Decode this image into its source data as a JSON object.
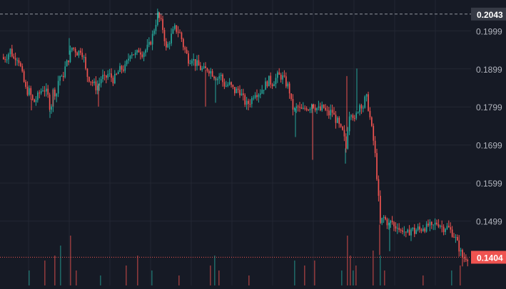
{
  "colors": {
    "background": "#161a25",
    "grid": "#232733",
    "up": "#26a69a",
    "down": "#ef5350",
    "axis_text": "#b2b5be",
    "high_line": "#b2b5be",
    "last_price_line": "#ef5350",
    "high_label_bg": "#363a45",
    "last_label_bg": "#ef5350"
  },
  "price_axis": {
    "tick_labels": [
      "0.1999",
      "0.1899",
      "0.1799",
      "0.1699",
      "0.1599",
      "0.1499"
    ]
  },
  "high_marker": {
    "label": "0.2043"
  },
  "last_price_marker": {
    "label": "0.1404"
  },
  "chart_data": {
    "type": "candlestick",
    "ylim": [
      0.133,
      0.208
    ],
    "y_ticks": [
      0.1999,
      0.1899,
      0.1799,
      0.1699,
      0.1599,
      0.1499
    ],
    "high": 0.2043,
    "last": 0.1404,
    "grid": true,
    "path": [
      [
        0,
        0.193
      ],
      [
        4,
        0.1925
      ],
      [
        10,
        0.1935
      ],
      [
        14,
        0.195
      ],
      [
        18,
        0.1925
      ],
      [
        22,
        0.1935
      ],
      [
        26,
        0.192
      ],
      [
        30,
        0.1885
      ],
      [
        36,
        0.184
      ],
      [
        40,
        0.184
      ],
      [
        46,
        0.181
      ],
      [
        50,
        0.182
      ],
      [
        56,
        0.184
      ],
      [
        60,
        0.185
      ],
      [
        66,
        0.183
      ],
      [
        70,
        0.179
      ],
      [
        74,
        0.1845
      ],
      [
        78,
        0.183
      ],
      [
        82,
        0.1885
      ],
      [
        86,
        0.187
      ],
      [
        90,
        0.19
      ],
      [
        96,
        0.193
      ],
      [
        100,
        0.1955
      ],
      [
        104,
        0.195
      ],
      [
        108,
        0.194
      ],
      [
        112,
        0.195
      ],
      [
        116,
        0.1935
      ],
      [
        120,
        0.1885
      ],
      [
        126,
        0.187
      ],
      [
        130,
        0.186
      ],
      [
        134,
        0.185
      ],
      [
        138,
        0.186
      ],
      [
        142,
        0.188
      ],
      [
        146,
        0.187
      ],
      [
        150,
        0.1885
      ],
      [
        154,
        0.188
      ],
      [
        158,
        0.187
      ],
      [
        162,
        0.188
      ],
      [
        166,
        0.1895
      ],
      [
        170,
        0.19
      ],
      [
        174,
        0.19
      ],
      [
        178,
        0.192
      ],
      [
        182,
        0.1945
      ],
      [
        186,
        0.194
      ],
      [
        190,
        0.1935
      ],
      [
        194,
        0.195
      ],
      [
        198,
        0.194
      ],
      [
        204,
        0.195
      ],
      [
        208,
        0.196
      ],
      [
        212,
        0.198
      ],
      [
        216,
        0.201
      ],
      [
        220,
        0.204
      ],
      [
        224,
        0.2025
      ],
      [
        228,
        0.2
      ],
      [
        232,
        0.195
      ],
      [
        236,
        0.197
      ],
      [
        240,
        0.199
      ],
      [
        244,
        0.2005
      ],
      [
        248,
        0.2
      ],
      [
        252,
        0.199
      ],
      [
        256,
        0.196
      ],
      [
        260,
        0.194
      ],
      [
        264,
        0.192
      ],
      [
        268,
        0.193
      ],
      [
        272,
        0.1915
      ],
      [
        276,
        0.191
      ],
      [
        280,
        0.19
      ],
      [
        286,
        0.1895
      ],
      [
        290,
        0.19
      ],
      [
        296,
        0.189
      ],
      [
        300,
        0.188
      ],
      [
        304,
        0.1875
      ],
      [
        308,
        0.1885
      ],
      [
        312,
        0.186
      ],
      [
        316,
        0.1855
      ],
      [
        320,
        0.186
      ],
      [
        324,
        0.185
      ],
      [
        328,
        0.184
      ],
      [
        334,
        0.1845
      ],
      [
        340,
        0.182
      ],
      [
        344,
        0.1805
      ],
      [
        348,
        0.181
      ],
      [
        352,
        0.182
      ],
      [
        356,
        0.184
      ],
      [
        360,
        0.1835
      ],
      [
        364,
        0.184
      ],
      [
        368,
        0.185
      ],
      [
        372,
        0.186
      ],
      [
        376,
        0.187
      ],
      [
        380,
        0.186
      ],
      [
        384,
        0.187
      ],
      [
        388,
        0.188
      ],
      [
        392,
        0.188
      ],
      [
        396,
        0.1875
      ],
      [
        400,
        0.186
      ],
      [
        404,
        0.185
      ],
      [
        408,
        0.18
      ],
      [
        412,
        0.179
      ],
      [
        416,
        0.18
      ],
      [
        420,
        0.179
      ],
      [
        424,
        0.179
      ],
      [
        428,
        0.18
      ],
      [
        432,
        0.1795
      ],
      [
        436,
        0.181
      ],
      [
        440,
        0.18
      ],
      [
        444,
        0.1795
      ],
      [
        448,
        0.179
      ],
      [
        452,
        0.18
      ],
      [
        456,
        0.1785
      ],
      [
        460,
        0.178
      ],
      [
        464,
        0.179
      ],
      [
        468,
        0.177
      ],
      [
        472,
        0.176
      ],
      [
        476,
        0.174
      ],
      [
        480,
        0.173
      ],
      [
        484,
        0.169
      ],
      [
        488,
        0.178
      ],
      [
        492,
        0.179
      ],
      [
        496,
        0.176
      ],
      [
        500,
        0.179
      ],
      [
        504,
        0.181
      ],
      [
        508,
        0.18
      ],
      [
        512,
        0.183
      ],
      [
        516,
        0.179
      ],
      [
        520,
        0.174
      ],
      [
        524,
        0.169
      ],
      [
        528,
        0.16
      ],
      [
        532,
        0.149
      ],
      [
        536,
        0.151
      ],
      [
        540,
        0.15
      ],
      [
        544,
        0.149
      ],
      [
        548,
        0.15
      ],
      [
        552,
        0.148
      ],
      [
        556,
        0.149
      ],
      [
        560,
        0.147
      ],
      [
        564,
        0.148
      ],
      [
        568,
        0.146
      ],
      [
        572,
        0.147
      ],
      [
        576,
        0.148
      ],
      [
        580,
        0.147
      ],
      [
        584,
        0.148
      ],
      [
        588,
        0.1475
      ],
      [
        592,
        0.1485
      ],
      [
        596,
        0.148
      ],
      [
        600,
        0.149
      ],
      [
        604,
        0.148
      ],
      [
        608,
        0.149
      ],
      [
        612,
        0.1495
      ],
      [
        616,
        0.149
      ],
      [
        620,
        0.148
      ],
      [
        624,
        0.1485
      ],
      [
        628,
        0.148
      ],
      [
        632,
        0.147
      ],
      [
        636,
        0.146
      ],
      [
        640,
        0.144
      ],
      [
        644,
        0.142
      ],
      [
        648,
        0.14
      ],
      [
        652,
        0.1405
      ],
      [
        655,
        0.1404
      ]
    ],
    "spikes": [
      [
        44,
        0.179
      ],
      [
        70,
        0.177
      ],
      [
        74,
        0.18
      ],
      [
        97,
        0.198
      ],
      [
        138,
        0.18
      ],
      [
        222,
        0.205
      ],
      [
        288,
        0.18
      ],
      [
        302,
        0.181
      ],
      [
        348,
        0.179
      ],
      [
        414,
        0.172
      ],
      [
        438,
        0.166
      ],
      [
        484,
        0.165
      ],
      [
        486,
        0.188
      ],
      [
        500,
        0.19
      ],
      [
        532,
        0.141
      ],
      [
        546,
        0.142
      ],
      [
        648,
        0.138
      ]
    ],
    "volume": [
      [
        40,
        0.3
      ],
      [
        62,
        0.5
      ],
      [
        76,
        0.6
      ],
      [
        84,
        0.8
      ],
      [
        98,
        1.0
      ],
      [
        106,
        0.3
      ],
      [
        140,
        0.2
      ],
      [
        176,
        0.4
      ],
      [
        192,
        0.6
      ],
      [
        212,
        0.3
      ],
      [
        250,
        0.2
      ],
      [
        294,
        0.4
      ],
      [
        300,
        0.6
      ],
      [
        306,
        0.3
      ],
      [
        348,
        0.2
      ],
      [
        412,
        0.5
      ],
      [
        426,
        0.4
      ],
      [
        440,
        0.5
      ],
      [
        478,
        0.3
      ],
      [
        486,
        1.0
      ],
      [
        490,
        0.6
      ],
      [
        494,
        0.3
      ],
      [
        498,
        0.4
      ],
      [
        522,
        0.7
      ],
      [
        532,
        0.6
      ],
      [
        538,
        0.3
      ],
      [
        592,
        0.2
      ],
      [
        632,
        0.3
      ],
      [
        644,
        0.4
      ]
    ]
  }
}
